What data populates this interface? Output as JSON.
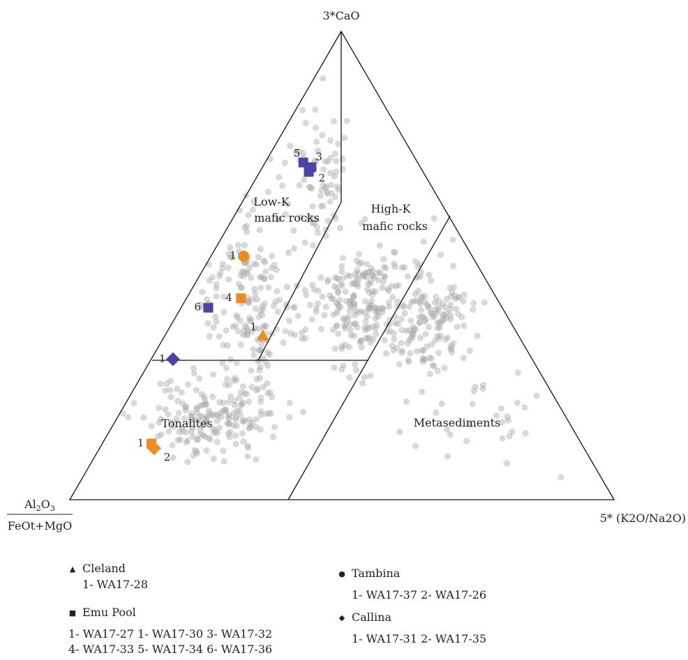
{
  "chart_data": {
    "type": "scatter",
    "subtype": "ternary",
    "axes": {
      "top": "3*CaO",
      "left_numerator_parts": [
        "Al",
        "2",
        "O",
        "3"
      ],
      "left_denominator": "FeOt+MgO",
      "right": "5* (K2O/Na2O)"
    },
    "fields": [
      "Low-K",
      "mafic rocks",
      "High-K",
      "mafic rocks",
      "Tonalites",
      "Metasediments"
    ],
    "background_points_color": "#aaaaaa",
    "sample_colors": {
      "orange": "#f08c1e",
      "blue": "#4a46a8"
    },
    "samples": [
      {
        "group": "Emu Pool",
        "label": "5",
        "marker": "square",
        "color": "blue",
        "caO": 0.72,
        "k2o_na2o": 0.07
      },
      {
        "group": "Emu Pool",
        "label": "3",
        "marker": "square",
        "color": "blue",
        "caO": 0.71,
        "k2o_na2o": 0.09
      },
      {
        "group": "Emu Pool",
        "label": "2",
        "marker": "square",
        "color": "blue",
        "caO": 0.7,
        "k2o_na2o": 0.09
      },
      {
        "group": "Tambina",
        "label": "1",
        "marker": "circle",
        "color": "orange",
        "caO": 0.52,
        "k2o_na2o": 0.06
      },
      {
        "group": "Emu Pool",
        "label": "4",
        "marker": "square",
        "color": "orange",
        "caO": 0.43,
        "k2o_na2o": 0.1
      },
      {
        "group": "Emu Pool",
        "label": "6",
        "marker": "square",
        "color": "blue",
        "caO": 0.41,
        "k2o_na2o": 0.05
      },
      {
        "group": "Cleland",
        "label": "1",
        "marker": "triangle",
        "color": "orange",
        "caO": 0.35,
        "k2o_na2o": 0.18
      },
      {
        "group": "Callina",
        "label": "1",
        "marker": "diamond",
        "color": "blue",
        "caO": 0.3,
        "k2o_na2o": 0.04
      },
      {
        "group": "Emu Pool",
        "label": "1",
        "marker": "square",
        "color": "orange",
        "caO": 0.12,
        "k2o_na2o": 0.09
      },
      {
        "group": "Callina",
        "label": "2",
        "marker": "diamond",
        "color": "orange",
        "caO": 0.11,
        "k2o_na2o": 0.1
      }
    ]
  },
  "legend": {
    "cleland_title": "Cleland",
    "cleland_samples": "1- WA17-28",
    "emu_title": "Emu Pool",
    "emu_line1": "1- WA17-27 1- WA17-30 3- WA17-32",
    "emu_line2": "4- WA17-33 5- WA17-34 6- WA17-36",
    "tambina_title": "Tambina",
    "tambina_samples": "1- WA17-37 2- WA17-26",
    "callina_title": "Callina",
    "callina_samples": "1- WA17-31 2- WA17-35"
  }
}
